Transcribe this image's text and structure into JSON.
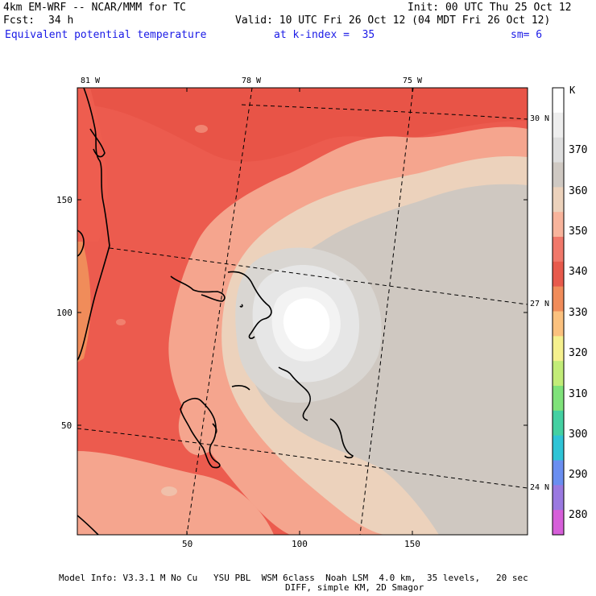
{
  "header": {
    "model": "4km EM-WRF -- NCAR/MMM for TC",
    "init": "Init: 00 UTC Thu 25 Oct 12",
    "fcst_label": "Fcst:",
    "fcst_value": "34 h",
    "valid": "Valid: 10 UTC Fri 26 Oct 12 (04 MDT Fri 26 Oct 12)",
    "field": "Equivalent potential temperature",
    "level": "at k-index =  35",
    "smoothing": "sm= 6"
  },
  "map": {
    "lon_labels": [
      "81 W",
      "78 W",
      "75 W"
    ],
    "lat_labels": [
      "30 N",
      "27 N",
      "24 N"
    ],
    "y_ticks": [
      "150",
      "100",
      "50"
    ],
    "x_ticks": [
      "50",
      "100",
      "150"
    ]
  },
  "colorbar": {
    "unit": "K",
    "levels": [
      "370",
      "360",
      "350",
      "340",
      "330",
      "320",
      "310",
      "300",
      "290",
      "280"
    ],
    "colors": [
      "#ffffff",
      "#eeeeee",
      "#dedede",
      "#cfc9c3",
      "#ecd2bc",
      "#f8b49c",
      "#f0786a",
      "#e75a4c",
      "#f08c5a",
      "#fbc17e",
      "#f5f08e",
      "#c2ec78",
      "#7fe27a",
      "#44d0a2",
      "#2fc4d6",
      "#6a8ef0",
      "#9a79e0",
      "#d65fd9"
    ]
  },
  "footer": {
    "line1": "Model Info: V3.3.1 M No Cu   YSU PBL  WSM 6class  Noah LSM  4.0 km,  35 levels,   20 sec",
    "line2": "DIFF, simple KM, 2D Smagor"
  }
}
